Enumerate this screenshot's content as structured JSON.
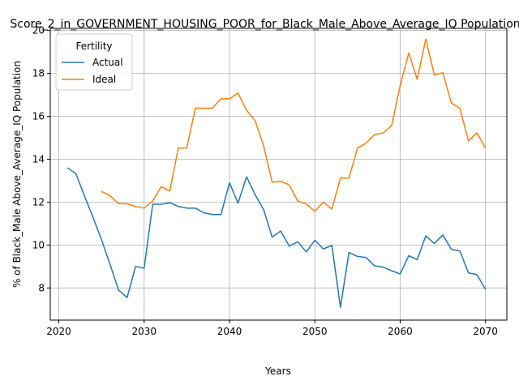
{
  "chart_data": {
    "type": "line",
    "title": "Score_2_in_GOVERNMENT_HOUSING_POOR_for_Black_Male_Above_Average_IQ Population",
    "xlabel": "Years",
    "ylabel": "% of Black_Male Above_Average_IQ Population",
    "xlim": [
      2019,
      2072.5
    ],
    "ylim": [
      6.5,
      20.1
    ],
    "xticks": [
      2020,
      2030,
      2040,
      2050,
      2060,
      2070
    ],
    "yticks": [
      8,
      10,
      12,
      14,
      16,
      18,
      20
    ],
    "grid": true,
    "legend": {
      "title": "Fertility",
      "placement": "upper left"
    },
    "series": [
      {
        "name": "Actual",
        "color": "#1f77b4",
        "x": [
          2021,
          2022,
          2023,
          2024,
          2025,
          2026,
          2027,
          2028,
          2029,
          2030,
          2031,
          2032,
          2033,
          2034,
          2035,
          2036,
          2037,
          2038,
          2039,
          2040,
          2041,
          2042,
          2043,
          2044,
          2045,
          2046,
          2047,
          2048,
          2049,
          2050,
          2051,
          2052,
          2053,
          2054,
          2055,
          2056,
          2057,
          2058,
          2059,
          2060,
          2061,
          2062,
          2063,
          2064,
          2065,
          2066,
          2067,
          2068,
          2069,
          2070
        ],
        "y": [
          13.6,
          13.33,
          12.3,
          11.3,
          10.25,
          9.1,
          7.9,
          7.55,
          9.0,
          8.92,
          11.9,
          11.9,
          11.97,
          11.8,
          11.72,
          11.72,
          11.5,
          11.42,
          11.42,
          12.9,
          11.95,
          13.18,
          12.35,
          11.65,
          10.37,
          10.65,
          9.95,
          10.15,
          9.68,
          10.22,
          9.82,
          9.98,
          7.1,
          9.65,
          9.47,
          9.42,
          9.03,
          8.97,
          8.8,
          8.65,
          9.5,
          9.32,
          10.43,
          10.07,
          10.47,
          9.8,
          9.72,
          8.7,
          8.62,
          7.93
        ]
      },
      {
        "name": "Ideal",
        "color": "#ff7f0e",
        "x": [
          2025,
          2026,
          2027,
          2028,
          2029,
          2030,
          2031,
          2032,
          2033,
          2034,
          2035,
          2036,
          2037,
          2038,
          2039,
          2040,
          2041,
          2042,
          2043,
          2044,
          2045,
          2046,
          2047,
          2048,
          2049,
          2050,
          2051,
          2052,
          2053,
          2054,
          2055,
          2056,
          2057,
          2058,
          2059,
          2060,
          2061,
          2062,
          2063,
          2064,
          2065,
          2066,
          2067,
          2068,
          2069,
          2070
        ],
        "y": [
          12.5,
          12.3,
          11.93,
          11.92,
          11.8,
          11.72,
          12.05,
          12.72,
          12.52,
          14.52,
          14.53,
          16.38,
          16.38,
          16.38,
          16.82,
          16.82,
          17.08,
          16.28,
          15.8,
          14.62,
          12.93,
          12.97,
          12.8,
          12.05,
          11.92,
          11.57,
          12.0,
          11.68,
          13.12,
          13.12,
          14.52,
          14.75,
          15.15,
          15.22,
          15.57,
          17.43,
          18.95,
          17.72,
          19.6,
          17.93,
          18.03,
          16.62,
          16.38,
          14.85,
          15.23,
          14.52
        ]
      }
    ]
  }
}
